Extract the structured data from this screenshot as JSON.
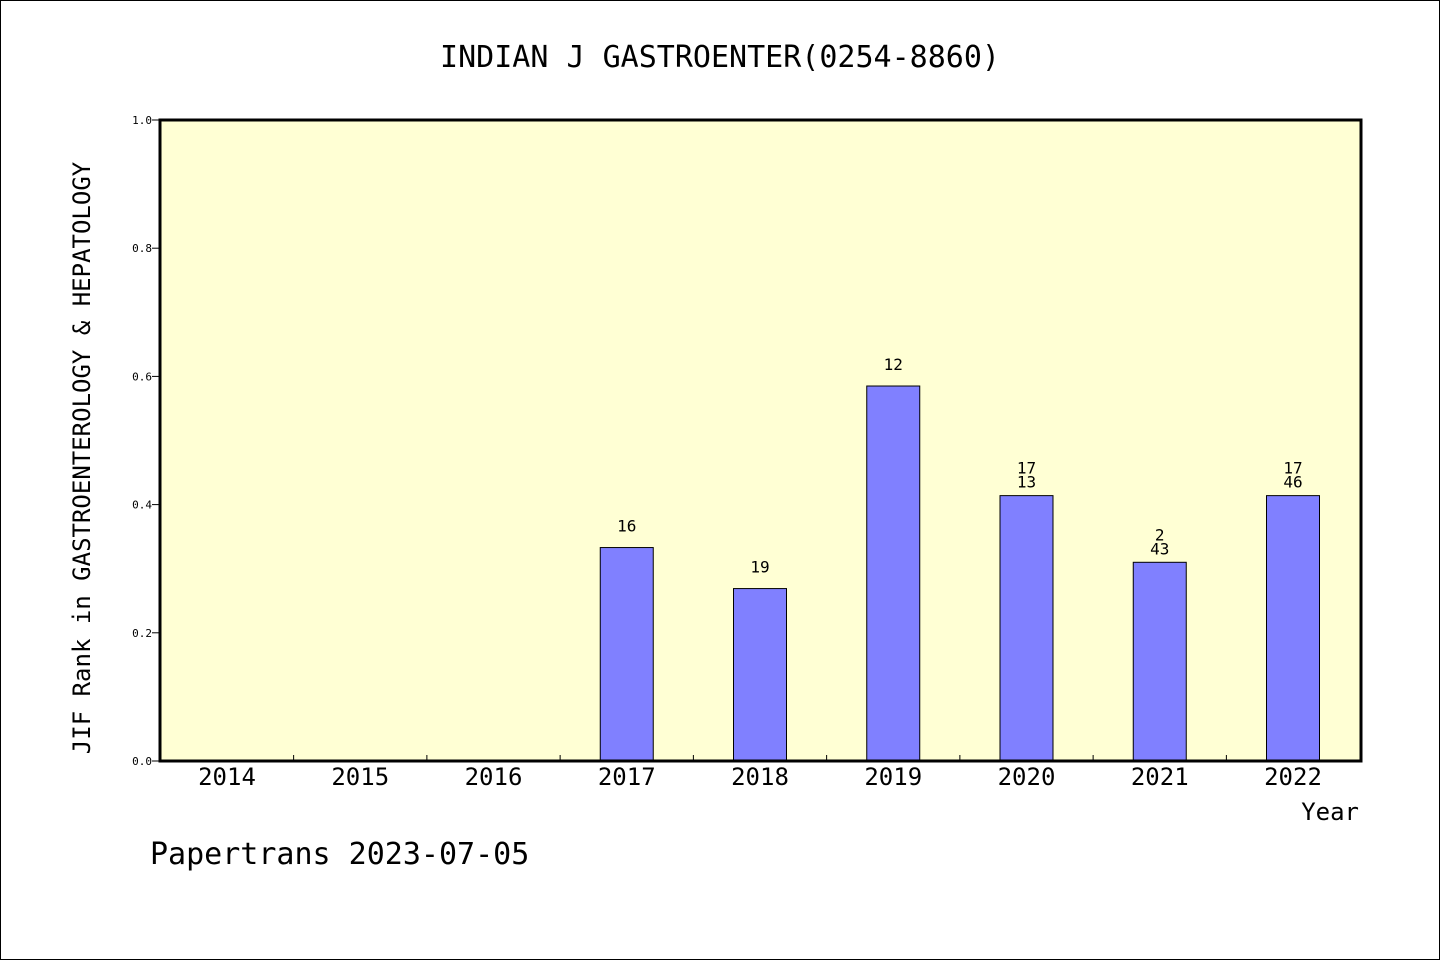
{
  "chart_data": {
    "type": "bar",
    "title": "INDIAN J GASTROENTER(0254-8860)",
    "xlabel": "Year",
    "ylabel": "JIF Rank in GASTROENTEROLOGY & HEPATOLOGY",
    "ylim": [
      0,
      1.0
    ],
    "yticks": [
      "0.0",
      "0.2",
      "0.4",
      "0.6",
      "0.8",
      "1.0"
    ],
    "categories": [
      "2014",
      "2015",
      "2016",
      "2017",
      "2018",
      "2019",
      "2020",
      "2021",
      "2022"
    ],
    "values": [
      null,
      null,
      null,
      0.333,
      0.269,
      0.585,
      0.414,
      0.31,
      0.414
    ],
    "bar_labels": [
      [],
      [],
      [],
      [
        "16"
      ],
      [
        "19"
      ],
      [
        "12"
      ],
      [
        "17",
        "13"
      ],
      [
        "2",
        "43"
      ],
      [
        "17",
        "46"
      ]
    ],
    "plot_background": "#ffffd4",
    "bar_color": "#8080ff",
    "grid": false
  },
  "footer": "Papertrans 2023-07-05"
}
